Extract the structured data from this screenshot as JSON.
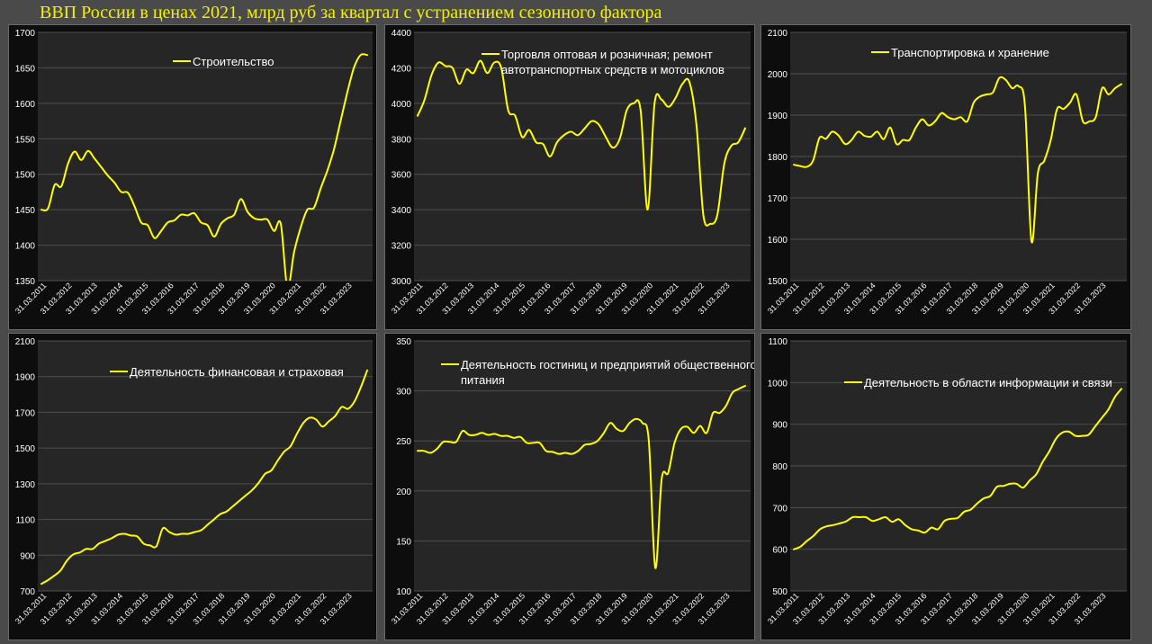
{
  "page_title": "ВВП России в ценах 2021, млрд руб за квартал с устранением сезонного фактора",
  "colors": {
    "series": "#ffff00",
    "title": "#f2f200",
    "plot_bg": "#262626",
    "panel_bg": "#0d0d0d"
  },
  "x_ticks": [
    "31.03.2011",
    "31.03.2012",
    "31.03.2013",
    "31.03.2014",
    "31.03.2015",
    "31.03.2016",
    "31.03.2017",
    "31.03.2018",
    "31.03.2019",
    "31.03.2020",
    "31.03.2021",
    "31.03.2022",
    "31.03.2023"
  ],
  "chart_data": [
    {
      "type": "line",
      "legend": [
        "Строительство"
      ],
      "ylim": [
        1350,
        1700
      ],
      "yticks": [
        1350,
        1400,
        1450,
        1500,
        1550,
        1600,
        1650,
        1700
      ],
      "values": [
        1450,
        1452,
        1485,
        1483,
        1515,
        1532,
        1520,
        1533,
        1522,
        1510,
        1498,
        1488,
        1475,
        1474,
        1455,
        1432,
        1428,
        1410,
        1420,
        1432,
        1435,
        1443,
        1442,
        1445,
        1432,
        1428,
        1412,
        1430,
        1438,
        1443,
        1465,
        1447,
        1438,
        1436,
        1436,
        1420,
        1430,
        1340,
        1390,
        1425,
        1450,
        1453,
        1480,
        1505,
        1535,
        1575,
        1615,
        1650,
        1668,
        1668
      ]
    },
    {
      "type": "line",
      "legend": [
        "Торговля оптовая и розничная; ремонт",
        "автотранспортных средств и мотоциклов"
      ],
      "ylim": [
        3000,
        4400
      ],
      "yticks": [
        3000,
        3200,
        3400,
        3600,
        3800,
        4000,
        4200,
        4400
      ],
      "values": [
        3930,
        4020,
        4160,
        4230,
        4210,
        4200,
        4110,
        4190,
        4170,
        4240,
        4170,
        4230,
        4200,
        3960,
        3930,
        3810,
        3850,
        3780,
        3770,
        3700,
        3780,
        3820,
        3840,
        3820,
        3860,
        3900,
        3880,
        3810,
        3750,
        3800,
        3960,
        4000,
        3960,
        3400,
        4000,
        4020,
        3980,
        4030,
        4110,
        4120,
        3880,
        3370,
        3320,
        3370,
        3660,
        3760,
        3780,
        3860
      ]
    },
    {
      "type": "line",
      "legend": [
        "Транспортировка и хранение"
      ],
      "ylim": [
        1500,
        2100
      ],
      "yticks": [
        1500,
        1600,
        1700,
        1800,
        1900,
        2000,
        2100
      ],
      "values": [
        1780,
        1777,
        1775,
        1790,
        1845,
        1843,
        1860,
        1850,
        1830,
        1840,
        1860,
        1850,
        1848,
        1860,
        1842,
        1870,
        1830,
        1840,
        1840,
        1870,
        1890,
        1875,
        1885,
        1905,
        1895,
        1890,
        1895,
        1885,
        1930,
        1945,
        1950,
        1955,
        1990,
        1985,
        1965,
        1970,
        1920,
        1595,
        1760,
        1790,
        1840,
        1915,
        1915,
        1930,
        1950,
        1885,
        1885,
        1895,
        1965,
        1950,
        1965,
        1975
      ]
    },
    {
      "type": "line",
      "legend": [
        "Деятельность финансовая и страховая"
      ],
      "ylim": [
        700,
        2100
      ],
      "yticks": [
        700,
        900,
        1100,
        1300,
        1500,
        1700,
        1900,
        2100
      ],
      "values": [
        740,
        760,
        785,
        815,
        870,
        905,
        915,
        935,
        935,
        965,
        980,
        995,
        1015,
        1020,
        1010,
        1005,
        965,
        955,
        950,
        1050,
        1030,
        1015,
        1020,
        1020,
        1030,
        1040,
        1070,
        1100,
        1130,
        1145,
        1175,
        1205,
        1235,
        1265,
        1305,
        1355,
        1375,
        1430,
        1480,
        1510,
        1580,
        1640,
        1670,
        1660,
        1620,
        1650,
        1680,
        1730,
        1720,
        1760,
        1840,
        1935
      ]
    },
    {
      "type": "line",
      "legend": [
        "Деятельность гостиниц и предприятий общественного",
        "питания"
      ],
      "ylim": [
        100,
        350
      ],
      "yticks": [
        100,
        150,
        200,
        250,
        300,
        350
      ],
      "values": [
        240,
        240,
        238,
        242,
        249,
        249,
        249,
        260,
        256,
        256,
        258,
        256,
        257,
        255,
        255,
        253,
        254,
        248,
        248,
        248,
        240,
        239,
        237,
        238,
        237,
        240,
        246,
        247,
        250,
        258,
        268,
        262,
        260,
        268,
        272,
        268,
        250,
        123,
        212,
        218,
        248,
        262,
        264,
        258,
        265,
        258,
        278,
        278,
        285,
        298,
        302,
        305
      ]
    },
    {
      "type": "line",
      "legend": [
        "Деятельность в области информации и связи"
      ],
      "ylim": [
        500,
        1100
      ],
      "yticks": [
        500,
        600,
        700,
        800,
        900,
        1000,
        1100
      ],
      "values": [
        600,
        606,
        620,
        632,
        648,
        655,
        658,
        662,
        667,
        677,
        677,
        677,
        668,
        672,
        677,
        666,
        672,
        658,
        648,
        645,
        640,
        652,
        648,
        668,
        673,
        675,
        690,
        695,
        710,
        722,
        728,
        750,
        752,
        757,
        757,
        748,
        765,
        780,
        810,
        835,
        865,
        880,
        882,
        872,
        872,
        875,
        895,
        915,
        935,
        965,
        985
      ]
    }
  ]
}
